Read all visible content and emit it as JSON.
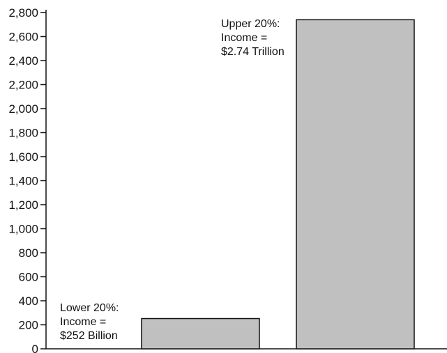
{
  "chart_data": {
    "type": "bar",
    "title": "",
    "xlabel": "",
    "ylabel": "",
    "ylim": [
      0,
      2800
    ],
    "y_ticks": [
      0,
      200,
      400,
      600,
      800,
      1000,
      1200,
      1400,
      1600,
      1800,
      2000,
      2200,
      2400,
      2600,
      2800
    ],
    "y_tick_labels": [
      "0",
      "200",
      "400",
      "600",
      "800",
      "1,000",
      "1,200",
      "1,400",
      "1,600",
      "1,800",
      "2,000",
      "2,200",
      "2,400",
      "2,600",
      "2,800"
    ],
    "grid": false,
    "bar_color": "#c0c0c0",
    "bar_edge_color": "#111111",
    "categories": [
      "",
      ""
    ],
    "values": [
      252,
      2740
    ],
    "annotations": [
      {
        "lines": [
          "Lower 20%:",
          "Income =",
          "$252 Billion"
        ],
        "placement": "left-of-bar"
      },
      {
        "lines": [
          "Upper 20%:",
          "Income =",
          "$2.74 Trillion"
        ],
        "placement": "left-of-bar"
      }
    ]
  }
}
